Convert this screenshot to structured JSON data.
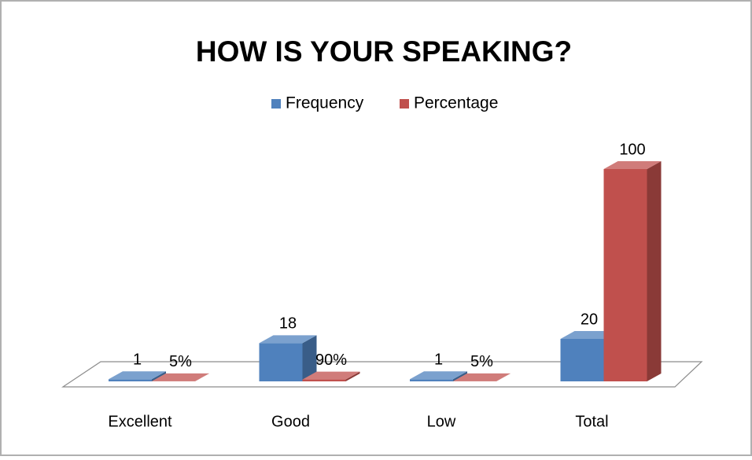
{
  "chart_data": {
    "type": "bar3d",
    "title": "HOW IS YOUR SPEAKING?",
    "categories": [
      "Excellent",
      "Good",
      "Low",
      "Total"
    ],
    "series": [
      {
        "name": "Frequency",
        "color": "#4f81bd",
        "values": [
          1,
          18,
          1,
          20
        ]
      },
      {
        "name": "Percentage",
        "color": "#c0504d",
        "values": [
          0.05,
          0.9,
          0.05,
          100
        ],
        "value_labels": [
          "5%",
          "90%",
          "5%",
          "100"
        ]
      }
    ],
    "ylim": [
      0,
      100
    ],
    "legend": "top"
  }
}
